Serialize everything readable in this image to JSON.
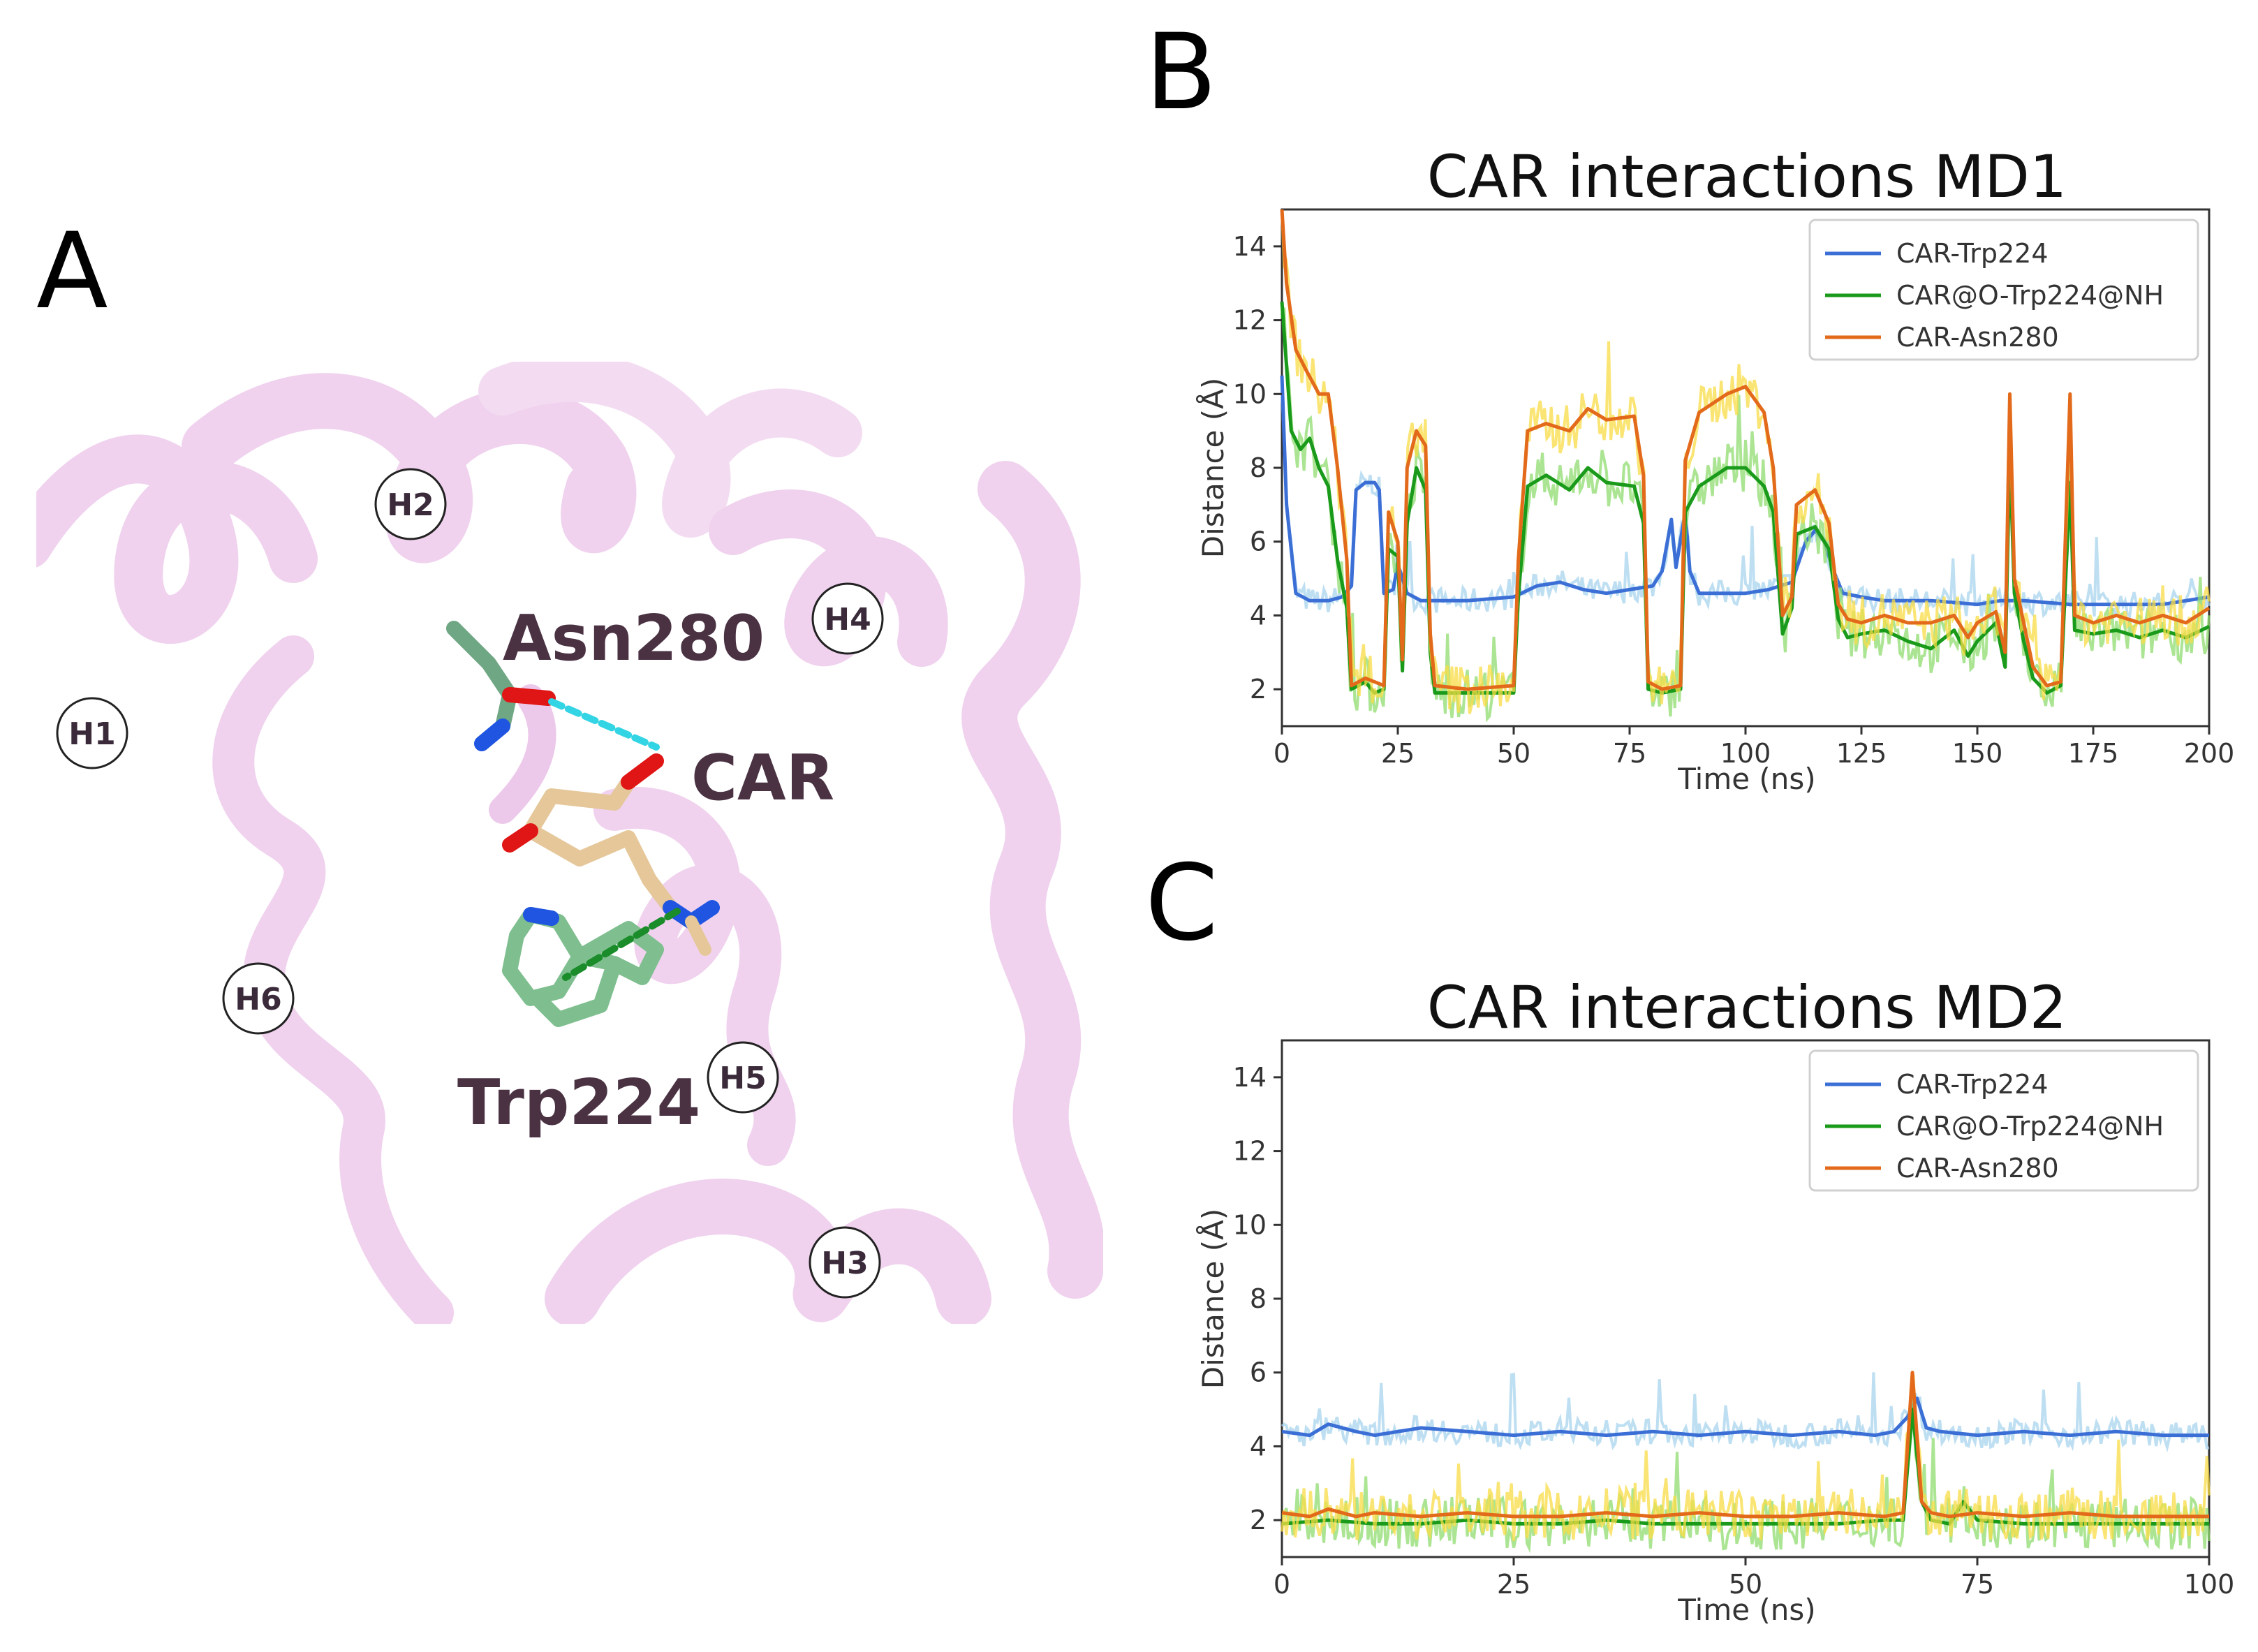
{
  "panels": {
    "a_letter": "A",
    "b_letter": "B",
    "c_letter": "C"
  },
  "structure": {
    "helix_labels": [
      "H1",
      "H2",
      "H3",
      "H4",
      "H5",
      "H6"
    ],
    "residue_labels": {
      "asn": "Asn280",
      "car": "CAR",
      "trp": "Trp224"
    },
    "colors": {
      "ribbon": "#f0d2ee",
      "ribbon_shade": "#e4b9e0",
      "asn_carbon": "#6fa784",
      "trp_carbon": "#7fbf8f",
      "car_carbon": "#e5c79a",
      "oxygen": "#e01515",
      "nitrogen": "#1f55e0",
      "hbond_cyan": "#33d4e4",
      "hbond_green": "#1a8c2a"
    }
  },
  "chart_data": [
    {
      "type": "line",
      "title": "CAR interactions MD1",
      "xlabel": "Time (ns)",
      "ylabel": "Distance (Å)",
      "xlim": [
        0,
        200
      ],
      "ylim": [
        1,
        15
      ],
      "xticks": [
        0,
        25,
        50,
        75,
        100,
        125,
        150,
        175,
        200
      ],
      "yticks": [
        2,
        4,
        6,
        8,
        10,
        12,
        14
      ],
      "legend": "top-right",
      "series": [
        {
          "name": "CAR-Trp224",
          "color": "#3b6fd6",
          "raw_color": "#a8d4ee",
          "points": [
            [
              0,
              10.5
            ],
            [
              1,
              7
            ],
            [
              3,
              4.6
            ],
            [
              6,
              4.4
            ],
            [
              10,
              4.4
            ],
            [
              13,
              4.5
            ],
            [
              15,
              4.8
            ],
            [
              16,
              7.4
            ],
            [
              18,
              7.6
            ],
            [
              20,
              7.6
            ],
            [
              21,
              7.4
            ],
            [
              22,
              4.6
            ],
            [
              24,
              4.7
            ],
            [
              25,
              5.4
            ],
            [
              27,
              4.6
            ],
            [
              30,
              4.4
            ],
            [
              40,
              4.4
            ],
            [
              50,
              4.5
            ],
            [
              55,
              4.8
            ],
            [
              60,
              4.9
            ],
            [
              65,
              4.7
            ],
            [
              70,
              4.6
            ],
            [
              75,
              4.7
            ],
            [
              80,
              4.8
            ],
            [
              82,
              5.2
            ],
            [
              84,
              6.6
            ],
            [
              85,
              5.3
            ],
            [
              87,
              6.8
            ],
            [
              88,
              5.2
            ],
            [
              90,
              4.6
            ],
            [
              100,
              4.6
            ],
            [
              105,
              4.7
            ],
            [
              110,
              4.9
            ],
            [
              113,
              6.0
            ],
            [
              115,
              6.3
            ],
            [
              117,
              6.0
            ],
            [
              119,
              5.2
            ],
            [
              121,
              4.6
            ],
            [
              125,
              4.5
            ],
            [
              130,
              4.4
            ],
            [
              140,
              4.4
            ],
            [
              150,
              4.3
            ],
            [
              155,
              4.4
            ],
            [
              160,
              4.4
            ],
            [
              170,
              4.3
            ],
            [
              180,
              4.3
            ],
            [
              190,
              4.3
            ],
            [
              200,
              4.5
            ]
          ]
        },
        {
          "name": "CAR@O-Trp224@NH",
          "color": "#1a9a1a",
          "raw_color": "#8fdc6f",
          "points": [
            [
              0,
              12.5
            ],
            [
              2,
              9
            ],
            [
              4,
              8.5
            ],
            [
              6,
              8.8
            ],
            [
              8,
              8
            ],
            [
              10,
              7.5
            ],
            [
              12,
              5.5
            ],
            [
              14,
              4.2
            ],
            [
              15,
              2.0
            ],
            [
              18,
              2.2
            ],
            [
              20,
              1.9
            ],
            [
              22,
              2.0
            ],
            [
              23,
              5.8
            ],
            [
              25,
              5.6
            ],
            [
              26,
              2.5
            ],
            [
              27,
              6.5
            ],
            [
              29,
              8.0
            ],
            [
              31,
              7.4
            ],
            [
              32,
              3.0
            ],
            [
              33,
              1.9
            ],
            [
              40,
              1.9
            ],
            [
              50,
              1.9
            ],
            [
              51,
              4.5
            ],
            [
              53,
              7.5
            ],
            [
              57,
              7.8
            ],
            [
              62,
              7.4
            ],
            [
              66,
              8.0
            ],
            [
              70,
              7.6
            ],
            [
              76,
              7.5
            ],
            [
              78,
              6.5
            ],
            [
              79,
              2.0
            ],
            [
              82,
              1.9
            ],
            [
              86,
              2.0
            ],
            [
              87,
              6.8
            ],
            [
              90,
              7.5
            ],
            [
              96,
              8.0
            ],
            [
              100,
              8.0
            ],
            [
              104,
              7.5
            ],
            [
              106,
              6.8
            ],
            [
              108,
              3.5
            ],
            [
              110,
              4.2
            ],
            [
              111,
              6.2
            ],
            [
              115,
              6.4
            ],
            [
              118,
              5.8
            ],
            [
              120,
              3.9
            ],
            [
              122,
              3.4
            ],
            [
              125,
              3.5
            ],
            [
              130,
              3.6
            ],
            [
              135,
              3.3
            ],
            [
              140,
              3.1
            ],
            [
              145,
              3.6
            ],
            [
              148,
              2.9
            ],
            [
              150,
              3.3
            ],
            [
              154,
              3.8
            ],
            [
              156,
              2.6
            ],
            [
              157,
              8.4
            ],
            [
              158,
              4.6
            ],
            [
              160,
              3.3
            ],
            [
              162,
              2.3
            ],
            [
              165,
              1.9
            ],
            [
              168,
              2.1
            ],
            [
              170,
              7.6
            ],
            [
              171,
              3.6
            ],
            [
              175,
              3.5
            ],
            [
              180,
              3.6
            ],
            [
              185,
              3.4
            ],
            [
              190,
              3.6
            ],
            [
              195,
              3.4
            ],
            [
              200,
              3.7
            ]
          ]
        },
        {
          "name": "CAR-Asn280",
          "color": "#e26a1a",
          "raw_color": "#f8dc46",
          "points": [
            [
              0,
              15
            ],
            [
              1,
              13
            ],
            [
              3,
              11.2
            ],
            [
              5,
              10.7
            ],
            [
              8,
              10.0
            ],
            [
              10,
              10.0
            ],
            [
              12,
              8.0
            ],
            [
              14,
              5.5
            ],
            [
              15,
              2.1
            ],
            [
              18,
              2.3
            ],
            [
              20,
              2.2
            ],
            [
              22,
              2.1
            ],
            [
              23,
              6.8
            ],
            [
              25,
              6.0
            ],
            [
              26,
              2.8
            ],
            [
              27,
              8.0
            ],
            [
              29,
              9.0
            ],
            [
              31,
              8.6
            ],
            [
              32,
              3.5
            ],
            [
              33,
              2.1
            ],
            [
              40,
              2.0
            ],
            [
              50,
              2.1
            ],
            [
              51,
              5.5
            ],
            [
              53,
              9.0
            ],
            [
              57,
              9.2
            ],
            [
              62,
              9.0
            ],
            [
              66,
              9.6
            ],
            [
              70,
              9.3
            ],
            [
              76,
              9.4
            ],
            [
              78,
              7.8
            ],
            [
              79,
              2.2
            ],
            [
              82,
              2.0
            ],
            [
              86,
              2.1
            ],
            [
              87,
              8.2
            ],
            [
              90,
              9.5
            ],
            [
              96,
              10.0
            ],
            [
              100,
              10.2
            ],
            [
              104,
              9.5
            ],
            [
              106,
              8.0
            ],
            [
              108,
              4.0
            ],
            [
              110,
              4.5
            ],
            [
              111,
              7.0
            ],
            [
              115,
              7.4
            ],
            [
              118,
              6.5
            ],
            [
              120,
              4.3
            ],
            [
              122,
              3.9
            ],
            [
              125,
              3.8
            ],
            [
              130,
              4.0
            ],
            [
              135,
              3.8
            ],
            [
              140,
              3.8
            ],
            [
              145,
              4.0
            ],
            [
              148,
              3.4
            ],
            [
              150,
              3.8
            ],
            [
              154,
              4.1
            ],
            [
              156,
              3.0
            ],
            [
              157,
              10.0
            ],
            [
              158,
              5.0
            ],
            [
              160,
              3.8
            ],
            [
              162,
              2.6
            ],
            [
              165,
              2.1
            ],
            [
              168,
              2.2
            ],
            [
              170,
              10.0
            ],
            [
              171,
              4.0
            ],
            [
              175,
              3.8
            ],
            [
              180,
              4.0
            ],
            [
              185,
              3.8
            ],
            [
              190,
              4.0
            ],
            [
              195,
              3.8
            ],
            [
              200,
              4.2
            ]
          ]
        }
      ]
    },
    {
      "type": "line",
      "title": "CAR interactions MD2",
      "xlabel": "Time (ns)",
      "ylabel": "Distance (Å)",
      "xlim": [
        0,
        100
      ],
      "ylim": [
        1,
        15
      ],
      "xticks": [
        0,
        25,
        50,
        75,
        100
      ],
      "yticks": [
        2,
        4,
        6,
        8,
        10,
        12,
        14
      ],
      "legend": "top-right",
      "series": [
        {
          "name": "CAR-Trp224",
          "color": "#3b6fd6",
          "raw_color": "#a8d4ee",
          "points": [
            [
              0,
              4.4
            ],
            [
              3,
              4.3
            ],
            [
              5,
              4.6
            ],
            [
              8,
              4.4
            ],
            [
              10,
              4.3
            ],
            [
              15,
              4.5
            ],
            [
              20,
              4.4
            ],
            [
              25,
              4.3
            ],
            [
              30,
              4.4
            ],
            [
              35,
              4.3
            ],
            [
              40,
              4.4
            ],
            [
              45,
              4.3
            ],
            [
              50,
              4.4
            ],
            [
              55,
              4.3
            ],
            [
              60,
              4.4
            ],
            [
              64,
              4.3
            ],
            [
              66,
              4.4
            ],
            [
              67.5,
              4.8
            ],
            [
              68.5,
              5.3
            ],
            [
              69.5,
              4.5
            ],
            [
              71,
              4.4
            ],
            [
              75,
              4.3
            ],
            [
              80,
              4.4
            ],
            [
              85,
              4.3
            ],
            [
              90,
              4.4
            ],
            [
              95,
              4.3
            ],
            [
              100,
              4.3
            ]
          ]
        },
        {
          "name": "CAR@O-Trp224@NH",
          "color": "#1a9a1a",
          "raw_color": "#8fdc6f",
          "points": [
            [
              0,
              1.9
            ],
            [
              5,
              2.0
            ],
            [
              10,
              1.9
            ],
            [
              15,
              1.9
            ],
            [
              20,
              2.0
            ],
            [
              25,
              1.9
            ],
            [
              30,
              1.9
            ],
            [
              35,
              2.0
            ],
            [
              40,
              1.9
            ],
            [
              45,
              1.9
            ],
            [
              50,
              1.9
            ],
            [
              55,
              1.9
            ],
            [
              60,
              1.9
            ],
            [
              65,
              2.0
            ],
            [
              67,
              2.0
            ],
            [
              68,
              5.0
            ],
            [
              69,
              2.5
            ],
            [
              70,
              2.0
            ],
            [
              72,
              1.9
            ],
            [
              73.5,
              2.5
            ],
            [
              75,
              2.0
            ],
            [
              80,
              1.9
            ],
            [
              85,
              1.9
            ],
            [
              90,
              1.9
            ],
            [
              95,
              1.9
            ],
            [
              100,
              1.9
            ]
          ]
        },
        {
          "name": "CAR-Asn280",
          "color": "#e26a1a",
          "raw_color": "#f8dc46",
          "points": [
            [
              0,
              2.2
            ],
            [
              3,
              2.1
            ],
            [
              5,
              2.3
            ],
            [
              8,
              2.1
            ],
            [
              10,
              2.2
            ],
            [
              15,
              2.1
            ],
            [
              20,
              2.2
            ],
            [
              25,
              2.1
            ],
            [
              30,
              2.1
            ],
            [
              35,
              2.2
            ],
            [
              40,
              2.1
            ],
            [
              45,
              2.2
            ],
            [
              50,
              2.1
            ],
            [
              55,
              2.1
            ],
            [
              60,
              2.2
            ],
            [
              65,
              2.1
            ],
            [
              67,
              2.2
            ],
            [
              68,
              6.0
            ],
            [
              69,
              2.5
            ],
            [
              70,
              2.2
            ],
            [
              72,
              2.1
            ],
            [
              75,
              2.2
            ],
            [
              80,
              2.1
            ],
            [
              85,
              2.2
            ],
            [
              90,
              2.1
            ],
            [
              95,
              2.1
            ],
            [
              100,
              2.1
            ]
          ]
        }
      ]
    }
  ]
}
